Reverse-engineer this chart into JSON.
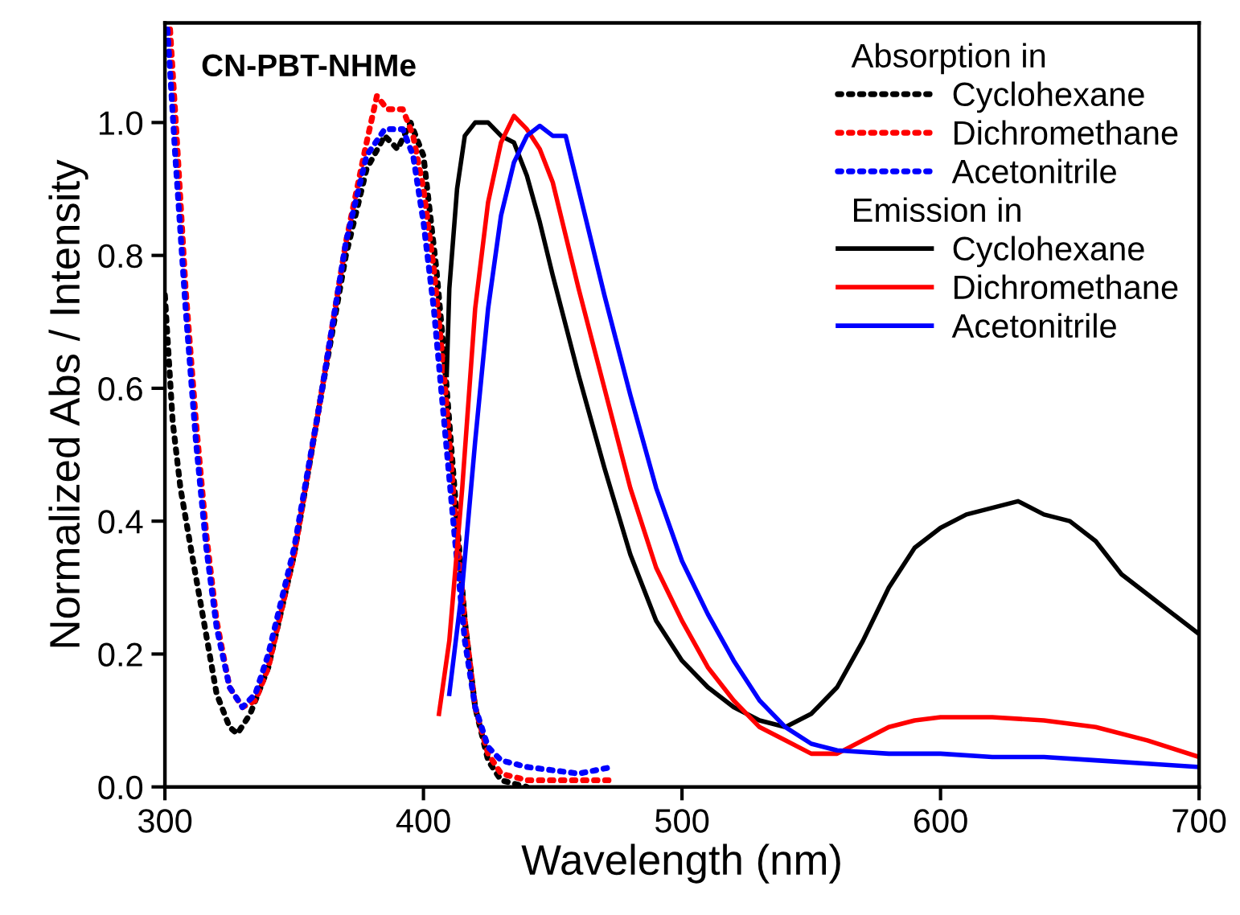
{
  "chart_data": {
    "type": "line",
    "title": "CN-PBT-NHMe",
    "xlabel": "Wavelength (nm)",
    "ylabel": "Normalized Abs / Intensity",
    "annotations": [
      "Absorption in",
      "Emission in"
    ],
    "xlim": [
      300,
      700
    ],
    "ylim": [
      0,
      1.15
    ],
    "xticks": [
      300,
      400,
      500,
      600,
      700
    ],
    "yticks": [
      {
        "value": 0,
        "label": "0.0"
      },
      0.2,
      0.4,
      0.6,
      0.8,
      {
        "value": 1,
        "label": "1.0"
      }
    ],
    "grid": false,
    "legend": "top right",
    "marker": "none",
    "series": [
      {
        "name": "Cyclohexane",
        "color": "#000000",
        "line_style": "dotted",
        "x": [
          300,
          303,
          306,
          310,
          315,
          320,
          325,
          328,
          333,
          340,
          350,
          360,
          370,
          378,
          385,
          390,
          395,
          400,
          405,
          408,
          412,
          416,
          420,
          425,
          430,
          440
        ],
        "values": [
          0.74,
          0.55,
          0.45,
          0.36,
          0.25,
          0.14,
          0.09,
          0.08,
          0.11,
          0.18,
          0.35,
          0.58,
          0.8,
          0.93,
          0.98,
          0.96,
          1.0,
          0.95,
          0.78,
          0.65,
          0.45,
          0.25,
          0.12,
          0.04,
          0.01,
          0.0
        ]
      },
      {
        "name": "Dichromethane",
        "color": "#ff0000",
        "line_style": "dotted",
        "x": [
          302,
          305,
          308,
          312,
          316,
          320,
          325,
          330,
          335,
          340,
          350,
          360,
          370,
          378,
          382,
          386,
          392,
          396,
          400,
          404,
          408,
          412,
          416,
          420,
          425,
          430,
          440,
          460,
          473
        ],
        "values": [
          1.14,
          0.95,
          0.75,
          0.55,
          0.38,
          0.25,
          0.15,
          0.12,
          0.13,
          0.18,
          0.35,
          0.58,
          0.82,
          0.97,
          1.04,
          1.02,
          1.02,
          0.98,
          0.9,
          0.78,
          0.62,
          0.42,
          0.25,
          0.12,
          0.05,
          0.02,
          0.01,
          0.01,
          0.01
        ]
      },
      {
        "name": "Acetonitrile",
        "color": "#0000ff",
        "line_style": "dotted",
        "x": [
          301,
          304,
          308,
          312,
          316,
          320,
          325,
          330,
          335,
          340,
          350,
          360,
          370,
          378,
          385,
          392,
          396,
          400,
          404,
          408,
          412,
          416,
          420,
          425,
          430,
          440,
          460,
          473
        ],
        "values": [
          1.14,
          0.95,
          0.72,
          0.52,
          0.36,
          0.24,
          0.15,
          0.12,
          0.14,
          0.2,
          0.36,
          0.58,
          0.82,
          0.95,
          0.99,
          0.99,
          0.95,
          0.85,
          0.72,
          0.55,
          0.38,
          0.22,
          0.12,
          0.06,
          0.04,
          0.03,
          0.02,
          0.03
        ]
      },
      {
        "name": "Cyclohexane",
        "color": "#000000",
        "line_style": "solid",
        "x": [
          409,
          410,
          413,
          416,
          420,
          425,
          430,
          435,
          440,
          445,
          450,
          460,
          470,
          480,
          490,
          500,
          510,
          520,
          530,
          540,
          550,
          560,
          570,
          580,
          590,
          600,
          610,
          620,
          630,
          640,
          650,
          660,
          670,
          680,
          690,
          700
        ],
        "values": [
          0.62,
          0.75,
          0.9,
          0.98,
          1.0,
          1.0,
          0.98,
          0.97,
          0.92,
          0.85,
          0.77,
          0.62,
          0.48,
          0.35,
          0.25,
          0.19,
          0.15,
          0.12,
          0.1,
          0.09,
          0.11,
          0.15,
          0.22,
          0.3,
          0.36,
          0.39,
          0.41,
          0.42,
          0.43,
          0.41,
          0.4,
          0.37,
          0.32,
          0.29,
          0.26,
          0.23
        ]
      },
      {
        "name": "Dichromethane",
        "color": "#ff0000",
        "line_style": "solid",
        "x": [
          406,
          410,
          415,
          420,
          425,
          430,
          435,
          440,
          445,
          450,
          460,
          470,
          480,
          490,
          500,
          510,
          520,
          530,
          540,
          550,
          560,
          570,
          580,
          590,
          600,
          620,
          640,
          660,
          680,
          700
        ],
        "values": [
          0.11,
          0.22,
          0.45,
          0.72,
          0.88,
          0.97,
          1.01,
          0.99,
          0.96,
          0.91,
          0.75,
          0.6,
          0.45,
          0.33,
          0.25,
          0.18,
          0.13,
          0.09,
          0.07,
          0.05,
          0.05,
          0.07,
          0.09,
          0.1,
          0.105,
          0.105,
          0.1,
          0.09,
          0.07,
          0.045
        ]
      },
      {
        "name": "Acetonitrile",
        "color": "#0000ff",
        "line_style": "solid",
        "x": [
          410,
          415,
          420,
          425,
          430,
          435,
          440,
          445,
          450,
          455,
          460,
          470,
          480,
          490,
          500,
          510,
          520,
          530,
          540,
          550,
          560,
          580,
          600,
          620,
          640,
          660,
          680,
          700
        ],
        "values": [
          0.14,
          0.3,
          0.52,
          0.72,
          0.86,
          0.94,
          0.98,
          0.995,
          0.98,
          0.98,
          0.9,
          0.74,
          0.59,
          0.45,
          0.34,
          0.26,
          0.19,
          0.13,
          0.09,
          0.065,
          0.055,
          0.05,
          0.05,
          0.045,
          0.045,
          0.04,
          0.035,
          0.03
        ]
      }
    ]
  }
}
